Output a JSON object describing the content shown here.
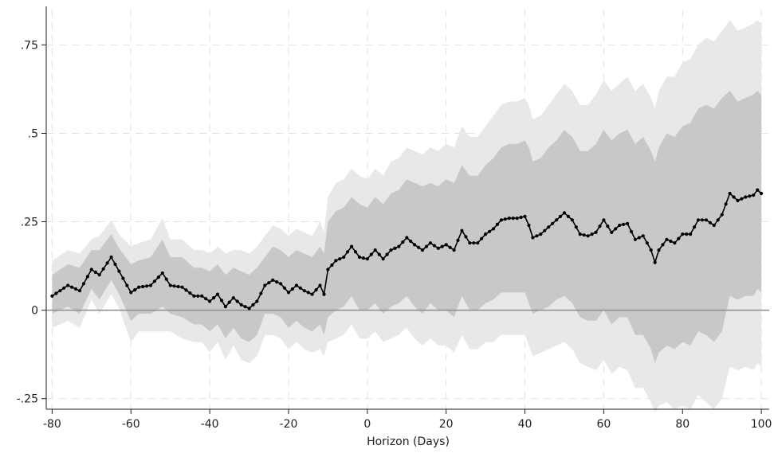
{
  "chart_data": {
    "type": "line",
    "title": "",
    "xlabel": "Horizon (Days)",
    "ylabel": "",
    "xlim": [
      -81.5,
      102
    ],
    "ylim": [
      -0.28,
      0.85
    ],
    "x_ticks": [
      -80,
      -60,
      -40,
      -20,
      0,
      20,
      40,
      60,
      80,
      100
    ],
    "x_tick_labels": [
      "-80",
      "-60",
      "-40",
      "-20",
      "0",
      "20",
      "40",
      "60",
      "80",
      "100"
    ],
    "y_ticks": [
      -0.25,
      0,
      0.25,
      0.5,
      0.75
    ],
    "y_tick_labels": [
      "-.25",
      "0",
      ".25",
      ".5",
      ".75"
    ],
    "grid": true,
    "zero_line": true,
    "colors": {
      "line": "#000000",
      "inner_band": "#c8c8c8",
      "outer_band": "#e8e8e8",
      "grid": "#e2e2e2",
      "zero_line": "#8c8c8c"
    },
    "anchors": {
      "x": [
        -80,
        -76,
        -73,
        -70,
        -68,
        -65,
        -63,
        -60,
        -58,
        -55,
        -52,
        -50,
        -47,
        -44,
        -42,
        -40,
        -38,
        -36,
        -34,
        -32,
        -30,
        -28,
        -26,
        -24,
        -22,
        -20,
        -18,
        -16,
        -14,
        -12,
        -11,
        -10,
        -8,
        -6,
        -4,
        -2,
        0,
        2,
        4,
        6,
        8,
        10,
        12,
        14,
        16,
        18,
        20,
        22,
        24,
        26,
        28,
        30,
        32,
        34,
        36,
        38,
        40,
        41,
        42,
        44,
        46,
        48,
        50,
        52,
        54,
        56,
        58,
        60,
        62,
        64,
        66,
        68,
        70,
        72,
        73,
        74,
        76,
        78,
        80,
        82,
        84,
        86,
        88,
        90,
        92,
        94,
        96,
        98,
        99,
        100
      ],
      "y": [
        0.04,
        0.07,
        0.055,
        0.115,
        0.1,
        0.15,
        0.11,
        0.05,
        0.065,
        0.07,
        0.105,
        0.07,
        0.065,
        0.04,
        0.04,
        0.025,
        0.045,
        0.01,
        0.035,
        0.015,
        0.005,
        0.025,
        0.07,
        0.085,
        0.075,
        0.05,
        0.07,
        0.055,
        0.045,
        0.07,
        0.045,
        0.115,
        0.14,
        0.15,
        0.18,
        0.15,
        0.145,
        0.17,
        0.145,
        0.17,
        0.18,
        0.205,
        0.185,
        0.17,
        0.19,
        0.175,
        0.185,
        0.17,
        0.225,
        0.19,
        0.19,
        0.215,
        0.23,
        0.255,
        0.26,
        0.26,
        0.265,
        0.24,
        0.205,
        0.215,
        0.235,
        0.255,
        0.275,
        0.255,
        0.215,
        0.21,
        0.22,
        0.255,
        0.22,
        0.24,
        0.245,
        0.2,
        0.21,
        0.17,
        0.135,
        0.17,
        0.2,
        0.19,
        0.215,
        0.215,
        0.255,
        0.255,
        0.24,
        0.27,
        0.33,
        0.31,
        0.32,
        0.325,
        0.34,
        0.33
      ],
      "inner_upper": [
        0.1,
        0.13,
        0.12,
        0.17,
        0.17,
        0.215,
        0.175,
        0.13,
        0.14,
        0.15,
        0.2,
        0.15,
        0.15,
        0.12,
        0.12,
        0.11,
        0.13,
        0.1,
        0.12,
        0.11,
        0.1,
        0.12,
        0.15,
        0.18,
        0.17,
        0.15,
        0.17,
        0.16,
        0.15,
        0.18,
        0.16,
        0.25,
        0.28,
        0.29,
        0.32,
        0.3,
        0.29,
        0.32,
        0.3,
        0.33,
        0.34,
        0.37,
        0.36,
        0.35,
        0.36,
        0.35,
        0.37,
        0.36,
        0.41,
        0.38,
        0.38,
        0.41,
        0.43,
        0.46,
        0.47,
        0.47,
        0.48,
        0.46,
        0.42,
        0.43,
        0.46,
        0.48,
        0.51,
        0.49,
        0.45,
        0.45,
        0.47,
        0.51,
        0.48,
        0.5,
        0.51,
        0.47,
        0.49,
        0.45,
        0.42,
        0.46,
        0.5,
        0.49,
        0.52,
        0.53,
        0.57,
        0.58,
        0.57,
        0.6,
        0.62,
        0.59,
        0.6,
        0.61,
        0.62,
        0.61
      ],
      "inner_lower": [
        -0.01,
        0.01,
        -0.01,
        0.06,
        0.03,
        0.085,
        0.045,
        -0.03,
        -0.01,
        -0.01,
        0.01,
        -0.01,
        -0.02,
        -0.04,
        -0.04,
        -0.06,
        -0.04,
        -0.08,
        -0.05,
        -0.08,
        -0.09,
        -0.07,
        -0.01,
        -0.01,
        -0.02,
        -0.05,
        -0.03,
        -0.05,
        -0.06,
        -0.04,
        -0.07,
        -0.02,
        0.0,
        0.01,
        0.04,
        0.0,
        0.0,
        0.02,
        -0.01,
        0.01,
        0.02,
        0.04,
        0.01,
        -0.01,
        0.02,
        0.0,
        0.0,
        -0.02,
        0.04,
        0.0,
        0.0,
        0.02,
        0.03,
        0.05,
        0.05,
        0.05,
        0.05,
        0.02,
        -0.01,
        0.0,
        0.01,
        0.03,
        0.04,
        0.02,
        -0.02,
        -0.03,
        -0.03,
        0.0,
        -0.04,
        -0.02,
        -0.02,
        -0.07,
        -0.07,
        -0.11,
        -0.15,
        -0.12,
        -0.1,
        -0.11,
        -0.09,
        -0.1,
        -0.06,
        -0.07,
        -0.09,
        -0.06,
        0.04,
        0.03,
        0.04,
        0.04,
        0.06,
        0.05
      ],
      "outer_upper": [
        0.14,
        0.17,
        0.16,
        0.2,
        0.21,
        0.255,
        0.215,
        0.18,
        0.19,
        0.2,
        0.26,
        0.2,
        0.2,
        0.17,
        0.17,
        0.16,
        0.18,
        0.16,
        0.17,
        0.17,
        0.16,
        0.18,
        0.21,
        0.24,
        0.23,
        0.21,
        0.23,
        0.22,
        0.21,
        0.25,
        0.22,
        0.32,
        0.36,
        0.37,
        0.4,
        0.38,
        0.37,
        0.4,
        0.38,
        0.42,
        0.43,
        0.46,
        0.45,
        0.44,
        0.46,
        0.45,
        0.47,
        0.46,
        0.52,
        0.49,
        0.49,
        0.52,
        0.55,
        0.58,
        0.59,
        0.59,
        0.6,
        0.58,
        0.54,
        0.55,
        0.58,
        0.61,
        0.64,
        0.62,
        0.58,
        0.58,
        0.61,
        0.65,
        0.62,
        0.64,
        0.66,
        0.62,
        0.64,
        0.6,
        0.57,
        0.62,
        0.66,
        0.66,
        0.7,
        0.71,
        0.75,
        0.77,
        0.76,
        0.79,
        0.82,
        0.79,
        0.8,
        0.81,
        0.82,
        0.81
      ],
      "outer_lower": [
        -0.05,
        -0.03,
        -0.05,
        0.03,
        -0.01,
        0.045,
        0.005,
        -0.09,
        -0.06,
        -0.06,
        -0.06,
        -0.06,
        -0.08,
        -0.09,
        -0.09,
        -0.12,
        -0.09,
        -0.14,
        -0.1,
        -0.14,
        -0.15,
        -0.13,
        -0.07,
        -0.07,
        -0.08,
        -0.11,
        -0.09,
        -0.11,
        -0.12,
        -0.11,
        -0.13,
        -0.09,
        -0.08,
        -0.07,
        -0.04,
        -0.08,
        -0.08,
        -0.06,
        -0.09,
        -0.08,
        -0.07,
        -0.05,
        -0.08,
        -0.1,
        -0.08,
        -0.1,
        -0.1,
        -0.12,
        -0.07,
        -0.11,
        -0.11,
        -0.09,
        -0.09,
        -0.07,
        -0.07,
        -0.07,
        -0.07,
        -0.1,
        -0.13,
        -0.12,
        -0.11,
        -0.1,
        -0.09,
        -0.11,
        -0.15,
        -0.16,
        -0.17,
        -0.14,
        -0.18,
        -0.16,
        -0.17,
        -0.22,
        -0.22,
        -0.26,
        -0.29,
        -0.27,
        -0.26,
        -0.28,
        -0.27,
        -0.28,
        -0.24,
        -0.26,
        -0.28,
        -0.25,
        -0.16,
        -0.17,
        -0.16,
        -0.17,
        -0.15,
        -0.16
      ]
    }
  }
}
